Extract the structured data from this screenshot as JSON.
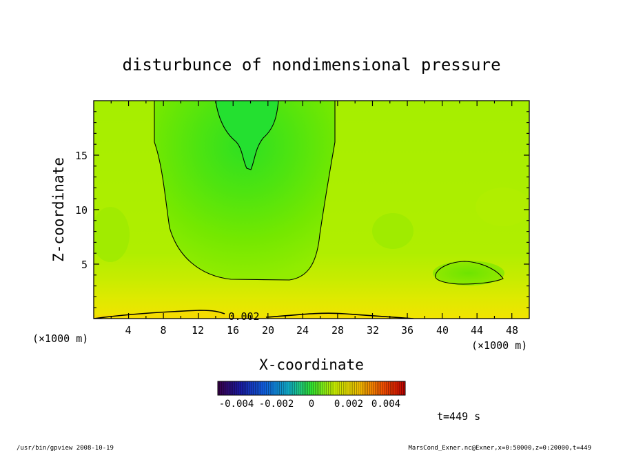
{
  "chart_data": {
    "type": "heatmap",
    "title": "disturbunce of nondimensional pressure",
    "xlabel": "X-coordinate",
    "ylabel": "Z-coordinate",
    "x_unit": "(×1000 m)",
    "y_unit": "(×1000 m)",
    "xlim": [
      0,
      50
    ],
    "ylim": [
      0,
      20
    ],
    "x_ticks": [
      "4",
      "8",
      "12",
      "16",
      "20",
      "24",
      "28",
      "32",
      "36",
      "40",
      "44",
      "48"
    ],
    "y_ticks": [
      "5",
      "10",
      "15"
    ],
    "colorbar": {
      "range": [
        -0.005,
        0.005
      ],
      "tick_labels": [
        "-0.004",
        "-0.002",
        "0",
        "0.002",
        "0.004"
      ]
    },
    "contour_labels": [
      "0.002"
    ],
    "time_label": "t=449 s"
  },
  "footer": {
    "left": "/usr/bin/gpview   2008-10-19",
    "right": "MarsCond_Exner.nc@Exner,x=0:50000,z=0:20000,t=449"
  },
  "colors": {
    "background_field": "#a8f000",
    "inner_field": "#60e400",
    "core_field": "#30e41c",
    "surface_high": "#f0e000"
  }
}
